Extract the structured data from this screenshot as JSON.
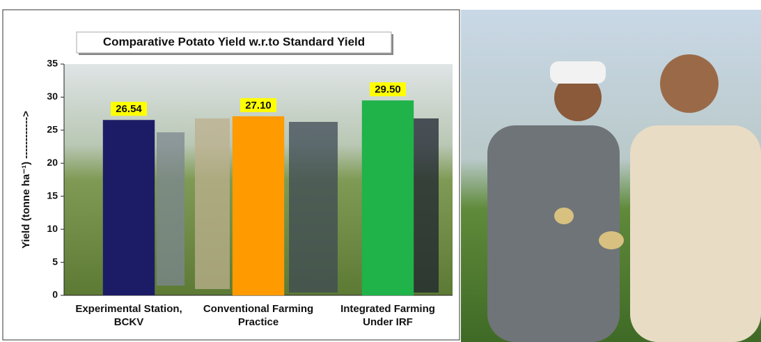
{
  "chart_data": {
    "type": "bar",
    "title": "Comparative Potato Yield w.r.to Standard Yield",
    "y_label": "Yield (tonne ha⁻¹) ------------>",
    "categories": [
      "Experimental  Station,\nBCKV",
      "Conventional Farming\nPractice",
      "Integrated Farming\nUnder IRF"
    ],
    "values": [
      26.54,
      27.1,
      29.5
    ],
    "value_labels": [
      "26.54",
      "27.10",
      "29.50"
    ],
    "colors": [
      "#1c1c66",
      "#ff9a00",
      "#1fb34a"
    ],
    "ylim": [
      0,
      35
    ],
    "yticks": [
      0,
      5,
      10,
      15,
      20,
      25,
      30,
      35
    ],
    "grid": false
  }
}
